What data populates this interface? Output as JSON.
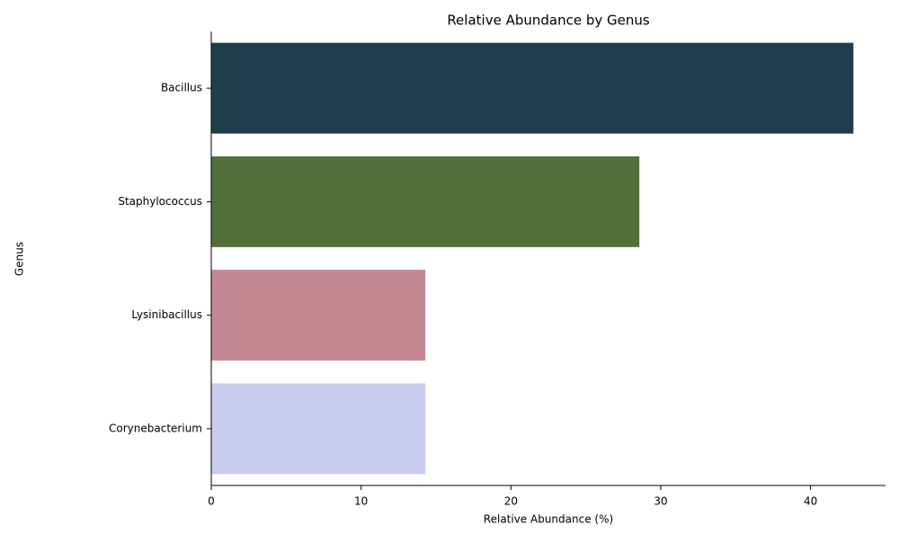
{
  "chart_data": {
    "type": "barh",
    "title": "Relative Abundance by Genus",
    "x_label": "Relative Abundance (%)",
    "y_label": "Genus",
    "categories": [
      "Bacillus",
      "Staphylococcus",
      "Lysinibacillus",
      "Corynebacterium"
    ],
    "values": [
      42.86,
      28.57,
      14.29,
      14.29
    ],
    "colors": [
      "#1f3d4a",
      "#54703a",
      "#c48894",
      "#c8cdef"
    ],
    "xlim": [
      0,
      45
    ],
    "xticks": [
      0,
      10,
      20,
      30,
      40
    ]
  }
}
